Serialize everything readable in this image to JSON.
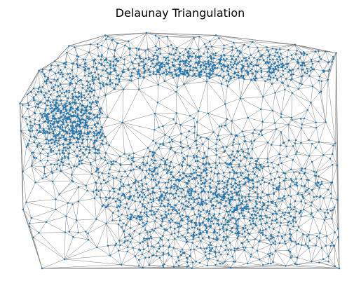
{
  "figure": {
    "title": "Delaunay Triangulation"
  },
  "chart_data": {
    "type": "scatter",
    "title": "Delaunay Triangulation",
    "xlabel": "",
    "ylabel": "",
    "axes_visible": false,
    "grid": false,
    "legend": "none",
    "edge_color": "#808080",
    "point_color": "#1f77b4",
    "approx_point_count": 9000,
    "boundary_vertices": [
      [
        0.1,
        0.88
      ],
      [
        0.145,
        0.945
      ],
      [
        0.26,
        0.99
      ],
      [
        0.39,
        1.0
      ],
      [
        0.61,
        0.99
      ],
      [
        0.86,
        0.95
      ],
      [
        0.99,
        0.915
      ],
      [
        1.0,
        0.0
      ],
      [
        0.06,
        0.0
      ],
      [
        0.0,
        0.25
      ],
      [
        -0.01,
        0.7
      ],
      [
        0.05,
        0.84
      ]
    ],
    "dense_regions": [
      {
        "name": "top-band",
        "center": [
          0.55,
          0.85
        ],
        "spread": [
          0.42,
          0.09
        ],
        "density": 0.22
      },
      {
        "name": "left-lobe",
        "center": [
          0.15,
          0.63
        ],
        "spread": [
          0.13,
          0.17
        ],
        "density": 0.18
      },
      {
        "name": "lower-right-mass",
        "center": [
          0.58,
          0.28
        ],
        "spread": [
          0.38,
          0.26
        ],
        "density": 0.4
      }
    ],
    "sparse_regions": [
      {
        "name": "central-gap",
        "polygon": [
          [
            0.24,
            0.76
          ],
          [
            0.42,
            0.82
          ],
          [
            0.82,
            0.79
          ],
          [
            0.82,
            0.7
          ],
          [
            0.56,
            0.7
          ],
          [
            0.42,
            0.6
          ],
          [
            0.3,
            0.44
          ],
          [
            0.26,
            0.56
          ]
        ]
      },
      {
        "name": "lower-left-gap",
        "polygon": [
          [
            0.06,
            0.0
          ],
          [
            0.3,
            0.0
          ],
          [
            0.28,
            0.22
          ],
          [
            0.18,
            0.34
          ],
          [
            0.04,
            0.36
          ]
        ]
      }
    ]
  }
}
